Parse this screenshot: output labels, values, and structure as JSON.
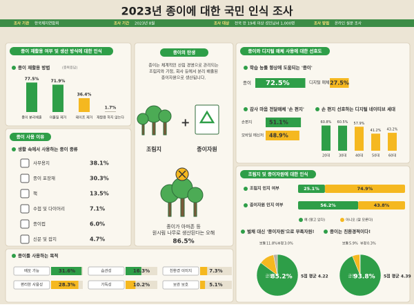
{
  "header": {
    "title": "2023년 종이에 대한 국민 인식 조사",
    "info": [
      {
        "key": "조사 기관",
        "text": "한국제지연합회"
      },
      {
        "key": "조사 기간",
        "text": "2023년 8월"
      },
      {
        "key": "조사 대상",
        "text": "전국 만 19세 이상 성인남녀 1,000명"
      },
      {
        "key": "조사 방법",
        "text": "온라인 설문 조사"
      }
    ]
  },
  "recycling": {
    "title": "종이 재활용 여부 및 생산 방식에 대한 인식",
    "subtitle": "종이 재활용 방법",
    "note": "(중복응답)",
    "items": [
      {
        "label": "종이 분리배출",
        "value": 77.5,
        "value_label": "77.5%",
        "color": "#2e9e48"
      },
      {
        "label": "이물질 제거",
        "value": 71.9,
        "value_label": "71.9%",
        "color": "#2e9e48"
      },
      {
        "label": "테이프 제거",
        "value": 36.4,
        "value_label": "36.4%",
        "color": "#f5b820"
      },
      {
        "label": "재활용 하지 않는다",
        "value": 1.7,
        "value_label": "1.7%",
        "color": "#b9b2a3"
      }
    ]
  },
  "paper_types": {
    "title": "종이 사용 이유",
    "subtitle": "생활 속에서 사용하는 종이 종류",
    "items": [
      {
        "label": "사무용지",
        "value_label": "38.1%"
      },
      {
        "label": "종이 포장재",
        "value_label": "30.3%"
      },
      {
        "label": "책",
        "value_label": "13.5%"
      },
      {
        "label": "수첩 및 다이어리",
        "value_label": "7.1%"
      },
      {
        "label": "종이컵",
        "value_label": "6.0%"
      },
      {
        "label": "신문 및 잡지",
        "value_label": "4.7%"
      }
    ]
  },
  "purpose": {
    "subtitle": "종이를 사용하는 목적",
    "items": [
      {
        "label": "배포 가능",
        "value": 31.6,
        "value_label": "31.6%",
        "color": "#2e9e48"
      },
      {
        "label": "습관성",
        "value": 16.3,
        "value_label": "16.3%",
        "color": "#2e9e48"
      },
      {
        "label": "친환경 이미지",
        "value": 7.3,
        "value_label": "7.3%",
        "color": "#f5b820"
      },
      {
        "label": "편리한 사용성",
        "value": 28.3,
        "value_label": "28.3%",
        "color": "#f5b820"
      },
      {
        "label": "가독성",
        "value": 10.2,
        "value_label": "10.2%",
        "color": "#f5b820"
      },
      {
        "label": "보관 보호",
        "value": 5.1,
        "value_label": "5.1%",
        "color": "#f5b820"
      }
    ]
  },
  "birth": {
    "title": "종이의 탄생",
    "text": [
      "종이는 체계적인 산림 경영으로 관리되는",
      "조림지와 가정, 회사 등에서 분리 배출된",
      "종이자원으로 생산됩니다."
    ],
    "left": "조림지",
    "right": "종이자원",
    "myth": [
      "종이가 아마존 등",
      "원시림 나무로 생산된다는 오해"
    ],
    "myth_value_label": "86.5%"
  },
  "preference": {
    "title": "종이와 디지털 매체 사용에 대한 선호도",
    "study": {
      "subtitle": "학습 능률 향상에 도움되는 '종이'",
      "items": [
        {
          "label": "종이",
          "value": 72.5,
          "value_label": "72.5%",
          "color": "#2e9e48"
        },
        {
          "label": "디지털 매체",
          "value": 27.5,
          "value_label": "27.5%",
          "color": "#f5b820"
        }
      ]
    },
    "letter": {
      "subtitle": "감사 마음 전달매체 '손 편지'",
      "items": [
        {
          "label": "손편지",
          "value": 51.1,
          "value_label": "51.1%",
          "color": "#2e9e48"
        },
        {
          "label": "모바일 메신저",
          "value": 48.9,
          "value_label": "48.9%",
          "color": "#f5b820"
        }
      ]
    },
    "generation": {
      "subtitle": "손 편지 선호하는 디지털 네이티브 세대",
      "items": [
        {
          "label": "20대",
          "value": 60.8,
          "value_label": "60.8%",
          "color": "#2e9e48"
        },
        {
          "label": "30대",
          "value": 60.5,
          "value_label": "60.5%",
          "color": "#2e9e48"
        },
        {
          "label": "40대",
          "value": 57.9,
          "value_label": "57.9%",
          "color": "#f5b820"
        },
        {
          "label": "50대",
          "value": 41.2,
          "value_label": "41.2%",
          "color": "#f5b820"
        },
        {
          "label": "60대",
          "value": 43.2,
          "value_label": "43.2%",
          "color": "#f5b820"
        }
      ]
    }
  },
  "awareness": {
    "title": "조림지 및 종이자원에 대한 인식",
    "legend": [
      {
        "name": "예 (알고 있다)",
        "color": "#2e9e48"
      },
      {
        "name": "아니오 (잘 모른다)",
        "color": "#f5b820"
      }
    ],
    "rows": [
      {
        "label": "조림지 인지 여부",
        "values": [
          25.1,
          74.9
        ],
        "value_labels": [
          "25.1%",
          "74.9%"
        ]
      },
      {
        "label": "종이자원 인지 여부",
        "values": [
          56.2,
          43.8
        ],
        "value_labels": [
          "56.2%",
          "43.8%"
        ]
      }
    ]
  },
  "pies": [
    {
      "title": "벌채 대신 '종이자원'으로 부족자원!",
      "mean": "5점 평균 4.22",
      "slices": [
        {
          "name": "긍정",
          "value": 85.2,
          "value_label": "85.2%",
          "color": "#2e9e48"
        },
        {
          "name": "보통",
          "value": 11.8,
          "value_label": "11.8%",
          "color": "#f5b820"
        },
        {
          "name": "부정",
          "value": 3.0,
          "value_label": "3.0%",
          "color": "#b9b2a3"
        }
      ]
    },
    {
      "title": "종이는 친환경적이다!",
      "mean": "5점 평균 4.39",
      "slices": [
        {
          "name": "긍정",
          "value": 93.8,
          "value_label": "93.8%",
          "color": "#2e9e48"
        },
        {
          "name": "보통",
          "value": 5.9,
          "value_label": "5.9%",
          "color": "#f5b820"
        },
        {
          "name": "부정",
          "value": 0.3,
          "value_label": "0.3%",
          "color": "#b9b2a3"
        }
      ]
    }
  ]
}
